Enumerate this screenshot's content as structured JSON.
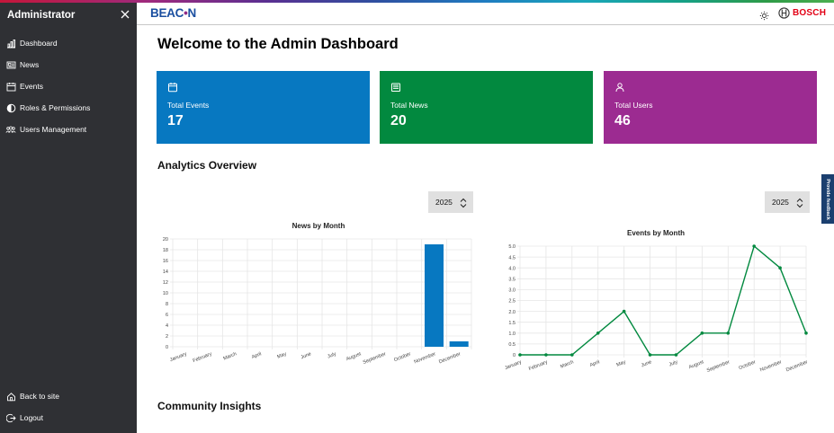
{
  "sidebar": {
    "title": "Administrator",
    "items": [
      {
        "label": "Dashboard",
        "icon": "bar-chart-icon"
      },
      {
        "label": "News",
        "icon": "newspaper-icon"
      },
      {
        "label": "Events",
        "icon": "calendar-icon"
      },
      {
        "label": "Roles & Permissions",
        "icon": "half-circle-icon"
      },
      {
        "label": "Users Management",
        "icon": "users-icon"
      }
    ],
    "bottom_items": [
      {
        "label": "Back to site",
        "icon": "home-icon"
      },
      {
        "label": "Logout",
        "icon": "logout-icon"
      }
    ]
  },
  "header": {
    "logo": {
      "part1": "BEAC",
      "dot": "•",
      "part2": "N"
    },
    "brand": "BOSCH"
  },
  "main": {
    "title": "Welcome to the Admin Dashboard",
    "cards": [
      {
        "label": "Total Events",
        "value": "17",
        "color": "#0778c1",
        "icon": "calendar-icon"
      },
      {
        "label": "Total News",
        "value": "20",
        "color": "#02893f",
        "icon": "newspaper-icon"
      },
      {
        "label": "Total Users",
        "value": "46",
        "color": "#9c2b91",
        "icon": "user-icon"
      }
    ],
    "analytics_title": "Analytics Overview",
    "community_title": "Community Insights",
    "year_selects": [
      {
        "value": "2025"
      },
      {
        "value": "2025"
      }
    ]
  },
  "feedback": {
    "label": "Provide feedback"
  },
  "chart_data": [
    {
      "type": "bar",
      "title": "News by Month",
      "categories": [
        "January",
        "February",
        "March",
        "April",
        "May",
        "June",
        "July",
        "August",
        "September",
        "October",
        "November",
        "December"
      ],
      "values": [
        0,
        0,
        0,
        0,
        0,
        0,
        0,
        0,
        0,
        0,
        19,
        1
      ],
      "ylim": [
        0,
        20
      ],
      "yticks": [
        "0",
        "2",
        "4",
        "6",
        "8",
        "10",
        "12",
        "14",
        "16",
        "18",
        "20"
      ],
      "color": "#0778c1",
      "grid": true
    },
    {
      "type": "line",
      "title": "Events by Month",
      "categories": [
        "January",
        "February",
        "March",
        "April",
        "May",
        "June",
        "July",
        "August",
        "September",
        "October",
        "November",
        "December"
      ],
      "values": [
        0,
        0,
        0,
        1,
        2,
        0,
        0,
        1,
        1,
        5,
        4,
        1
      ],
      "ylim": [
        0,
        5
      ],
      "yticks": [
        "0",
        "0.5",
        "1.0",
        "1.5",
        "2.0",
        "2.5",
        "3.0",
        "3.5",
        "4.0",
        "4.5",
        "5.0"
      ],
      "color": "#02893f",
      "grid": true
    }
  ]
}
